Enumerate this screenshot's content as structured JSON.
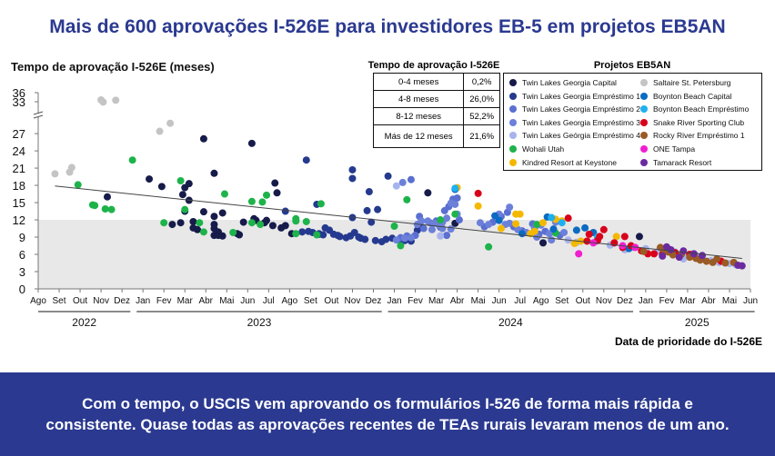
{
  "title": "Mais de 600 aprovações I-526E para investidores EB-5 em projetos EB5AN",
  "banner": {
    "line1": "Com o tempo, o USCIS vem aprovando os formulários I-526 de forma mais rápida e",
    "line2": "consistente. Quase todas as aprovações recentes de TEAs rurais levaram menos de um ano."
  },
  "table": {
    "title": "Tempo de aprovação I-526E",
    "rows": [
      [
        "0-4 meses",
        "0,2%"
      ],
      [
        "4-8 meses",
        "26,0%"
      ],
      [
        "8-12 meses",
        "52,2%"
      ],
      [
        "Más de 12 meses",
        "21,6%"
      ]
    ]
  },
  "chart_data": {
    "type": "scatter",
    "ylabel": "Tempo de aprovação I-526E (meses)",
    "xlabel": "Data de prioridade do I-526E",
    "yticks": [
      "0",
      "3",
      "6",
      "9",
      "12",
      "15",
      "18",
      "21",
      "24",
      "27",
      "33",
      "36"
    ],
    "yticks_values": [
      0,
      3,
      6,
      9,
      12,
      15,
      18,
      21,
      24,
      27,
      33,
      36
    ],
    "y_break": [
      30,
      33
    ],
    "xticks": [
      "Ago",
      "Set",
      "Out",
      "Nov",
      "Dez",
      "Jan",
      "Fev",
      "Mar",
      "Abr",
      "Mai",
      "Jun",
      "Jul",
      "Ago",
      "Set",
      "Out",
      "Nov",
      "Dez",
      "Jan",
      "Fev",
      "Mar",
      "Abr",
      "Mai",
      "Jun",
      "Jul",
      "Ago",
      "Set",
      "Out",
      "Nov",
      "Dez",
      "Jan",
      "Fev",
      "Mar",
      "Abr",
      "Mai",
      "Jun"
    ],
    "x_note": "x = months since Aug 2022",
    "years": [
      {
        "label": "2022",
        "from": 0,
        "to": 4.4
      },
      {
        "label": "2023",
        "from": 4.7,
        "to": 16.4
      },
      {
        "label": "2024",
        "from": 16.7,
        "to": 28.4
      },
      {
        "label": "2025",
        "from": 28.7,
        "to": 34.2
      }
    ],
    "shaded_band": [
      0,
      12
    ],
    "trendline": [
      [
        0.8,
        17.9
      ],
      [
        33.6,
        5.3
      ]
    ],
    "legend_title": "Projetos EB5AN",
    "series": [
      {
        "name": "Twin Lakes Georgia Capital",
        "color": "#161b4a",
        "points": [
          [
            3.3,
            16
          ],
          [
            5.3,
            19.1
          ],
          [
            5.9,
            17.8
          ],
          [
            6.4,
            11.2
          ],
          [
            6.8,
            11.5
          ],
          [
            6.9,
            16.4
          ],
          [
            7,
            17.6
          ],
          [
            7.2,
            18.3
          ],
          [
            7.2,
            15.4
          ],
          [
            7,
            13.5
          ],
          [
            7.4,
            11.7
          ],
          [
            7.4,
            10.6
          ],
          [
            7.6,
            10.3
          ],
          [
            7.9,
            26.1
          ],
          [
            7.9,
            13.4
          ],
          [
            8.4,
            12.6
          ],
          [
            8.4,
            20.1
          ],
          [
            8.4,
            11.2
          ],
          [
            8.4,
            10.5
          ],
          [
            8.4,
            9.3
          ],
          [
            8.6,
            9.9
          ],
          [
            8.8,
            13.2
          ],
          [
            8.8,
            9.2
          ],
          [
            8.6,
            9.3
          ],
          [
            9.5,
            9.6
          ],
          [
            9.6,
            9.4
          ],
          [
            9.8,
            11.6
          ],
          [
            10.2,
            25.3
          ],
          [
            10.3,
            12.2
          ],
          [
            10.4,
            11.9
          ],
          [
            10.8,
            11.5
          ],
          [
            10.9,
            11.9
          ],
          [
            11.2,
            11
          ],
          [
            11.3,
            18.4
          ],
          [
            11.4,
            16.7
          ],
          [
            11.6,
            10.6
          ],
          [
            11.8,
            11
          ],
          [
            12.1,
            9.6
          ],
          [
            13.4,
            9.5
          ],
          [
            18.6,
            16.7
          ],
          [
            18.2,
            11.3
          ],
          [
            19.9,
            11.4
          ],
          [
            24.1,
            8
          ],
          [
            28.7,
            9.1
          ]
        ]
      },
      {
        "name": "Twin Lakes Georgia Empréstimo 1",
        "color": "#253a8f",
        "points": [
          [
            11.8,
            13.5
          ],
          [
            12.8,
            22.4
          ],
          [
            13.3,
            14.7
          ],
          [
            12.6,
            9.9
          ],
          [
            12.9,
            10
          ],
          [
            13.1,
            9.8
          ],
          [
            13.4,
            9.6
          ],
          [
            13.7,
            10.6
          ],
          [
            13.9,
            10.2
          ],
          [
            14.1,
            9.5
          ],
          [
            14.4,
            9.1
          ],
          [
            14.7,
            8.9
          ],
          [
            14.9,
            9.2
          ],
          [
            15,
            20.7
          ],
          [
            15,
            19.2
          ],
          [
            15,
            12.4
          ],
          [
            15.1,
            9.8
          ],
          [
            15.3,
            9
          ],
          [
            15.6,
            8.6
          ],
          [
            15.8,
            16.9
          ],
          [
            15.7,
            13.6
          ],
          [
            15.9,
            11.6
          ],
          [
            16.2,
            13.8
          ],
          [
            16.1,
            8.4
          ],
          [
            16.4,
            8.2
          ],
          [
            16.6,
            8.6
          ],
          [
            16.7,
            19.6
          ],
          [
            16.9,
            8.8
          ],
          [
            17.2,
            8.5
          ],
          [
            17.5,
            8.4
          ],
          [
            17.8,
            8.3
          ],
          [
            18.1,
            10.2
          ],
          [
            13.6,
            9.4
          ],
          [
            14.3,
            9.3
          ],
          [
            15.4,
            8.8
          ]
        ]
      },
      {
        "name": "Twin Lakes Georgia Empréstimo 2",
        "color": "#5a6fd0",
        "points": [
          [
            17.3,
            8.9
          ],
          [
            17.6,
            9.2
          ],
          [
            18,
            9.3
          ],
          [
            18.2,
            12.6
          ],
          [
            18.4,
            10.5
          ],
          [
            18.7,
            11.5
          ],
          [
            19,
            11.8
          ],
          [
            19.2,
            10.7
          ],
          [
            19.4,
            13.6
          ],
          [
            19.6,
            14.3
          ],
          [
            19.8,
            15.6
          ],
          [
            20,
            15.8
          ],
          [
            20.1,
            12
          ],
          [
            19.5,
            9.3
          ],
          [
            17.8,
            19
          ],
          [
            21.3,
            10.8
          ],
          [
            21.7,
            11.6
          ],
          [
            22.1,
            12.6
          ],
          [
            22.4,
            13.3
          ],
          [
            22.7,
            10.8
          ],
          [
            23.1,
            10.1
          ],
          [
            23.6,
            11.3
          ],
          [
            23.9,
            9.5
          ],
          [
            24.2,
            10
          ],
          [
            24.6,
            10.3
          ],
          [
            24.9,
            9.3
          ]
        ]
      },
      {
        "name": "Twin Lakes Georgia Empréstimo 3",
        "color": "#6c80da",
        "points": [
          [
            17.1,
            8.5
          ],
          [
            17.5,
            8.8
          ],
          [
            17.8,
            8.9
          ],
          [
            18.1,
            11.2
          ],
          [
            18.3,
            11.8
          ],
          [
            18.6,
            11.8
          ],
          [
            18.9,
            11.4
          ],
          [
            19.1,
            11.2
          ],
          [
            19.3,
            11.6
          ],
          [
            19.5,
            12.3
          ],
          [
            19.7,
            14.9
          ],
          [
            19.9,
            14.7
          ],
          [
            20,
            13
          ],
          [
            19.7,
            10.4
          ],
          [
            19.3,
            10.5
          ],
          [
            18.8,
            10.3
          ],
          [
            17.4,
            18.5
          ],
          [
            21.1,
            11.5
          ],
          [
            21.5,
            11.2
          ],
          [
            22,
            13
          ],
          [
            22.3,
            11.2
          ],
          [
            22.5,
            11.4
          ],
          [
            22.9,
            10.3
          ],
          [
            23.3,
            9.8
          ],
          [
            23.7,
            10.6
          ],
          [
            24,
            11.1
          ],
          [
            24.4,
            9.6
          ],
          [
            24.7,
            11.6
          ],
          [
            25.1,
            9.8
          ],
          [
            24.5,
            8.5
          ],
          [
            23.8,
            9
          ],
          [
            22.5,
            14.2
          ]
        ]
      },
      {
        "name": "Twin Lakes Geórgia Empréstimo 4",
        "color": "#a7b3ec",
        "points": [
          [
            17.1,
            17.9
          ],
          [
            19.2,
            9.2
          ],
          [
            25.3,
            8.5
          ],
          [
            25.7,
            8.1
          ],
          [
            26.6,
            8.2
          ],
          [
            27.3,
            7.6
          ],
          [
            28,
            6.8
          ],
          [
            28.4,
            7.2
          ],
          [
            29,
            7
          ],
          [
            29.6,
            6.6
          ],
          [
            30.4,
            6.4
          ],
          [
            30.8,
            5.2
          ],
          [
            31,
            5.7
          ],
          [
            31.4,
            5.8
          ],
          [
            32.1,
            4.9
          ],
          [
            32.5,
            4.6
          ],
          [
            33,
            4.4
          ],
          [
            33.3,
            4.2
          ]
        ]
      },
      {
        "name": "Wohali Utah",
        "color": "#1db34a",
        "points": [
          [
            1.9,
            18.1
          ],
          [
            2.6,
            14.6
          ],
          [
            2.7,
            14.5
          ],
          [
            3.2,
            13.9
          ],
          [
            3.5,
            13.8
          ],
          [
            4.5,
            22.4
          ],
          [
            6,
            11.5
          ],
          [
            6.8,
            18.8
          ],
          [
            7,
            13.8
          ],
          [
            7.7,
            11.5
          ],
          [
            7.9,
            9.9
          ],
          [
            8.9,
            16.5
          ],
          [
            9.3,
            9.8
          ],
          [
            10.2,
            15.2
          ],
          [
            10.2,
            11.5
          ],
          [
            10.6,
            11.2
          ],
          [
            10.7,
            15.1
          ],
          [
            10.9,
            16.3
          ],
          [
            12.3,
            9.6
          ],
          [
            12.3,
            12.2
          ],
          [
            12.3,
            11.8
          ],
          [
            12.8,
            11.7
          ],
          [
            13.5,
            14.8
          ],
          [
            13.3,
            9.4
          ],
          [
            17,
            10.9
          ],
          [
            17.3,
            7.5
          ],
          [
            17.6,
            15.5
          ],
          [
            21.5,
            7.3
          ],
          [
            24.7,
            9.7
          ],
          [
            19.9,
            13
          ],
          [
            23.8,
            11.2
          ],
          [
            19.2,
            12
          ]
        ]
      },
      {
        "name": "Kindred Resort at Keystone",
        "color": "#f5b800",
        "points": [
          [
            20,
            17.6
          ],
          [
            21,
            14.4
          ],
          [
            22.8,
            13
          ],
          [
            23,
            13
          ],
          [
            24.7,
            12.1
          ],
          [
            25,
            11.8
          ],
          [
            22.8,
            11.3
          ],
          [
            23.7,
            10
          ],
          [
            23.5,
            9.6
          ],
          [
            22.1,
            10.5
          ],
          [
            27.6,
            9.1
          ],
          [
            25.9,
            8.3
          ],
          [
            24.1,
            11.5
          ],
          [
            25.6,
            7.9
          ]
        ]
      },
      {
        "name": "Saltaire St. Petersburg",
        "color": "#c4c4c4",
        "points": [
          [
            0.8,
            20
          ],
          [
            1.5,
            20.3
          ],
          [
            1.6,
            21.1
          ],
          [
            3,
            33.6
          ],
          [
            3.1,
            32.9
          ],
          [
            3.7,
            33.5
          ],
          [
            5.8,
            27.4
          ],
          [
            6.3,
            28.8
          ]
        ]
      },
      {
        "name": "Boynton Beach Capital",
        "color": "#0a6bc2",
        "points": [
          [
            21.8,
            12.7
          ],
          [
            22,
            11.9
          ],
          [
            24.3,
            12.5
          ],
          [
            24.6,
            10.4
          ],
          [
            25.7,
            10.2
          ],
          [
            26.1,
            10.6
          ],
          [
            26.5,
            9.8
          ],
          [
            19.9,
            17.3
          ],
          [
            23.1,
            9.6
          ],
          [
            28.2,
            7
          ]
        ]
      },
      {
        "name": "Boynton Beach Empréstimo",
        "color": "#1fb0f0",
        "points": [
          [
            19.9,
            17.5
          ],
          [
            24.5,
            12.4
          ],
          [
            25,
            11.5
          ],
          [
            26.7,
            9
          ],
          [
            27.5,
            8
          ]
        ]
      },
      {
        "name": "Snake River Sporting Club",
        "color": "#d9001b",
        "points": [
          [
            21,
            16.6
          ],
          [
            25.3,
            12.3
          ],
          [
            26.3,
            9.5
          ],
          [
            26.7,
            8.4
          ],
          [
            26.2,
            8.3
          ],
          [
            27,
            10.3
          ],
          [
            27.5,
            8
          ],
          [
            28,
            9.1
          ],
          [
            28.3,
            7.5
          ],
          [
            28.8,
            6.6
          ],
          [
            29.1,
            6.1
          ],
          [
            29.4,
            6.1
          ],
          [
            29.8,
            6
          ],
          [
            30.4,
            6.3
          ],
          [
            31.1,
            6
          ],
          [
            32.6,
            4.8
          ],
          [
            26.8,
            9.1
          ],
          [
            27.9,
            7.2
          ]
        ]
      },
      {
        "name": "Rocky River Empréstimo 1",
        "color": "#9a5b25",
        "points": [
          [
            29.7,
            7.2
          ],
          [
            29.9,
            6.7
          ],
          [
            30.1,
            6.4
          ],
          [
            30.7,
            6
          ],
          [
            31.4,
            5.3
          ],
          [
            31.6,
            5
          ],
          [
            31.9,
            4.8
          ],
          [
            32.2,
            4.6
          ],
          [
            32.4,
            5.2
          ],
          [
            32.8,
            4.5
          ],
          [
            33.2,
            4.6
          ],
          [
            31.1,
            5.5
          ],
          [
            30.3,
            5.9
          ],
          [
            28.9,
            6.5
          ]
        ]
      },
      {
        "name": "ONE Tampa",
        "color": "#f01fd0",
        "points": [
          [
            25.8,
            6.1
          ],
          [
            27.9,
            7.5
          ],
          [
            28.5,
            7.2
          ],
          [
            26.5,
            8
          ]
        ]
      },
      {
        "name": "Tamarack Resort",
        "color": "#6b2aa0",
        "points": [
          [
            30,
            7.3
          ],
          [
            30.2,
            6.8
          ],
          [
            30.8,
            6.6
          ],
          [
            31.3,
            6.1
          ],
          [
            31.7,
            5.8
          ],
          [
            33.4,
            4.1
          ],
          [
            33.6,
            4
          ],
          [
            30.6,
            5.5
          ],
          [
            29.8,
            5.7
          ]
        ]
      }
    ],
    "legend_order": [
      0,
      1,
      2,
      3,
      4,
      5,
      6,
      7,
      8,
      9,
      10,
      11,
      12,
      13
    ]
  }
}
